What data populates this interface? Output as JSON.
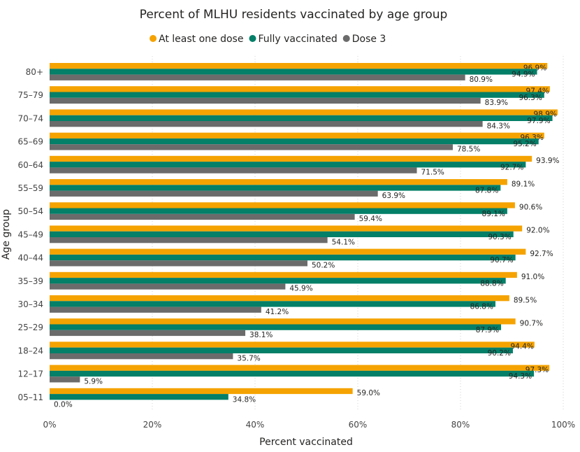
{
  "chart_data": {
    "type": "bar",
    "orientation": "horizontal",
    "title": "Percent of MLHU residents vaccinated by age group",
    "xlabel": "Percent vaccinated",
    "ylabel": "Age group",
    "xlim": [
      0,
      100
    ],
    "x_ticks": [
      "0%",
      "20%",
      "40%",
      "60%",
      "80%",
      "100%"
    ],
    "x_tick_values": [
      0,
      20,
      40,
      60,
      80,
      100
    ],
    "grid": true,
    "legend_position": "top",
    "categories": [
      "80+",
      "75–79",
      "70–74",
      "65–69",
      "60–64",
      "55–59",
      "50–54",
      "45–49",
      "40–44",
      "35–39",
      "30–34",
      "25–29",
      "18–24",
      "12–17",
      "05–11"
    ],
    "series": [
      {
        "name": "At least one dose",
        "color": "#F5A300",
        "values": [
          96.9,
          97.4,
          98.9,
          96.3,
          93.9,
          89.1,
          90.6,
          92.0,
          92.7,
          91.0,
          89.5,
          90.7,
          94.4,
          97.3,
          59.0
        ]
      },
      {
        "name": "Fully vaccinated",
        "color": "#047F68",
        "values": [
          94.9,
          96.3,
          97.9,
          95.2,
          92.7,
          87.8,
          89.1,
          90.3,
          90.7,
          88.8,
          86.8,
          87.9,
          90.2,
          94.3,
          34.8
        ]
      },
      {
        "name": "Dose 3",
        "color": "#6B6B6B",
        "values": [
          80.9,
          83.9,
          84.3,
          78.5,
          71.5,
          63.9,
          59.4,
          54.1,
          50.2,
          45.9,
          41.2,
          38.1,
          35.7,
          5.9,
          0.0
        ]
      }
    ]
  }
}
